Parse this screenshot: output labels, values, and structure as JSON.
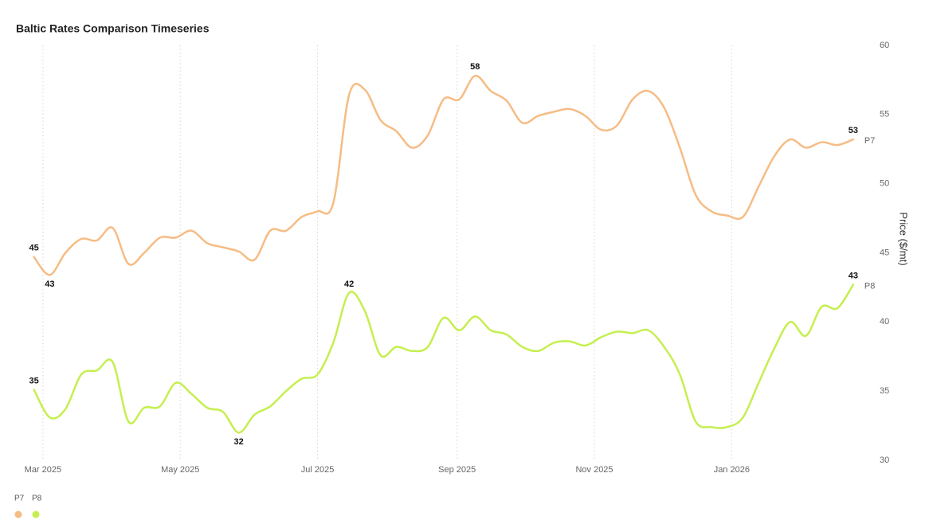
{
  "chart_data": {
    "type": "line",
    "title": "Baltic Rates Comparison Timeseries",
    "y_label": "Price ($/mt)",
    "x": [
      "2025-02-25",
      "2025-03-04",
      "2025-03-11",
      "2025-03-18",
      "2025-03-25",
      "2025-04-01",
      "2025-04-08",
      "2025-04-15",
      "2025-04-22",
      "2025-04-29",
      "2025-05-06",
      "2025-05-13",
      "2025-05-20",
      "2025-05-27",
      "2025-06-03",
      "2025-06-10",
      "2025-06-17",
      "2025-06-24",
      "2025-07-01",
      "2025-07-08",
      "2025-07-15",
      "2025-07-22",
      "2025-07-29",
      "2025-08-05",
      "2025-08-12",
      "2025-08-19",
      "2025-08-26",
      "2025-09-02",
      "2025-09-09",
      "2025-09-16",
      "2025-09-23",
      "2025-09-30",
      "2025-10-07",
      "2025-10-14",
      "2025-10-21",
      "2025-10-28",
      "2025-11-04",
      "2025-11-11",
      "2025-11-18",
      "2025-11-25",
      "2025-12-02",
      "2025-12-09",
      "2025-12-16",
      "2025-12-23",
      "2025-12-30",
      "2026-01-06",
      "2026-01-13",
      "2026-01-20",
      "2026-01-27",
      "2026-02-03",
      "2026-02-10",
      "2026-02-17",
      "2026-02-24"
    ],
    "series": [
      {
        "name": "P7",
        "color": "#f6bc84",
        "values": [
          44.7,
          43.4,
          45.0,
          46.0,
          45.9,
          46.8,
          44.2,
          45.0,
          46.1,
          46.1,
          46.6,
          45.7,
          45.4,
          45.1,
          44.5,
          46.6,
          46.6,
          47.6,
          48.0,
          48.6,
          56.4,
          56.8,
          54.6,
          53.8,
          52.6,
          53.5,
          56.1,
          56.1,
          57.8,
          56.7,
          56.0,
          54.4,
          54.9,
          55.2,
          55.4,
          54.9,
          53.9,
          54.2,
          56.1,
          56.7,
          55.5,
          52.6,
          49.2,
          48.0,
          47.7,
          47.6,
          49.8,
          52.0,
          53.2,
          52.6,
          53.0,
          52.8,
          53.2
        ],
        "value_labels": [
          "45",
          "43",
          null,
          null,
          null,
          null,
          null,
          null,
          null,
          null,
          null,
          null,
          null,
          null,
          null,
          null,
          null,
          null,
          null,
          null,
          null,
          null,
          null,
          null,
          null,
          null,
          null,
          null,
          "58",
          null,
          null,
          null,
          null,
          null,
          null,
          null,
          null,
          null,
          null,
          null,
          null,
          null,
          null,
          null,
          null,
          null,
          null,
          null,
          null,
          null,
          null,
          null,
          "53"
        ]
      },
      {
        "name": "P8",
        "color": "#c5ef4f",
        "values": [
          35.1,
          33.1,
          33.7,
          36.2,
          36.5,
          37.1,
          32.8,
          33.8,
          33.9,
          35.6,
          34.8,
          33.8,
          33.5,
          32.0,
          33.3,
          33.9,
          35.0,
          35.9,
          36.2,
          38.5,
          42.1,
          40.8,
          37.6,
          38.2,
          37.9,
          38.2,
          40.3,
          39.4,
          40.4,
          39.4,
          39.1,
          38.2,
          37.9,
          38.5,
          38.6,
          38.3,
          38.9,
          39.3,
          39.2,
          39.4,
          38.2,
          36.2,
          32.8,
          32.4,
          32.4,
          33.1,
          35.6,
          38.1,
          40.0,
          39.0,
          41.1,
          41.0,
          42.7
        ],
        "value_labels": [
          "35",
          null,
          null,
          null,
          null,
          null,
          null,
          null,
          null,
          null,
          null,
          null,
          null,
          "32",
          null,
          null,
          null,
          null,
          null,
          null,
          "42",
          null,
          null,
          null,
          null,
          null,
          null,
          null,
          null,
          null,
          null,
          null,
          null,
          null,
          null,
          null,
          null,
          null,
          null,
          null,
          null,
          null,
          null,
          null,
          null,
          null,
          null,
          null,
          null,
          null,
          null,
          null,
          "43"
        ]
      }
    ],
    "xlim": [
      "2025-02-17",
      "2026-03-01"
    ],
    "xticks": [
      {
        "value": "2025-03-01",
        "label": "Mar 2025"
      },
      {
        "value": "2025-05-01",
        "label": "May 2025"
      },
      {
        "value": "2025-07-01",
        "label": "Jul 2025"
      },
      {
        "value": "2025-09-01",
        "label": "Sep 2025"
      },
      {
        "value": "2025-11-01",
        "label": "Nov 2025"
      },
      {
        "value": "2026-01-01",
        "label": "Jan 2026"
      }
    ],
    "ylim": [
      30,
      60
    ],
    "yticks": [
      30,
      35,
      40,
      45,
      50,
      55,
      60
    ],
    "x_grid": true,
    "legend": "bottom-left"
  }
}
